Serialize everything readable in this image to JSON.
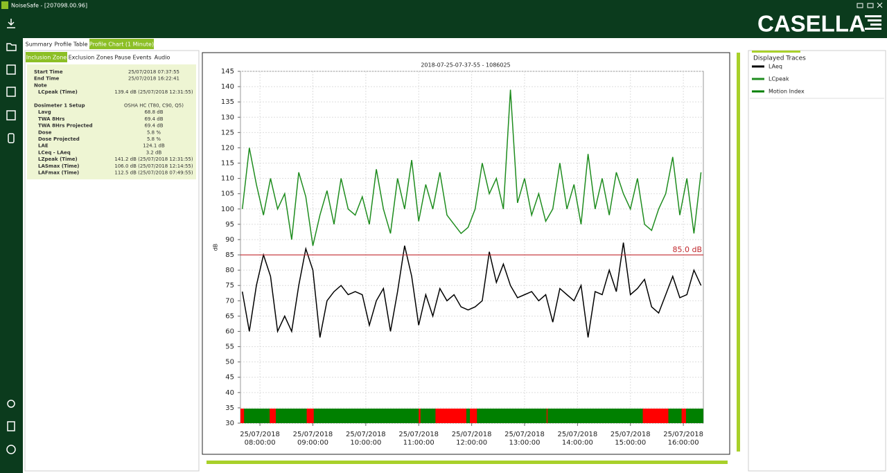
{
  "window": {
    "title": "NoiseSafe - [207098.00.96]",
    "logo": "CASELLA"
  },
  "tabs": [
    "Summary",
    "Profile Table",
    "Profile Chart (1 Minute)"
  ],
  "subtabs": [
    "Inclusion Zone",
    "Exclusion Zones",
    "Pause Events",
    "Audio"
  ],
  "summary": {
    "blocks": [
      {
        "items": [
          {
            "label": "Start Time",
            "value": "25/07/2018 07:37:55"
          },
          {
            "label": "End Time",
            "value": "25/07/2018 16:22:41"
          },
          {
            "label": "Note",
            "children": [
              {
                "label": "LCpeak (Time)",
                "value": "139.4 dB (25/07/2018 12:31:55)"
              }
            ]
          }
        ]
      },
      {
        "items": [
          {
            "label": "Dosimeter 1 Setup",
            "value": "OSHA HC (T80, C90, Q5)",
            "children": [
              {
                "label": "Lavg",
                "value": "68.8 dB"
              },
              {
                "label": "TWA 8Hrs",
                "value": "69.4 dB"
              },
              {
                "label": "TWA 8Hrs Projected",
                "value": "69.4 dB"
              },
              {
                "label": "Dose",
                "value": "5.8 %"
              },
              {
                "label": "Dose Projected",
                "value": "5.8 %"
              },
              {
                "label": "LAE",
                "value": "124.1 dB"
              },
              {
                "label": "LCeq - LAeq",
                "value": "3.2 dB"
              },
              {
                "label": "LZpeak (Time)",
                "value": "141.2 dB (25/07/2018 12:31:55)"
              },
              {
                "label": "LASmax (Time)",
                "value": "106.0 dB (25/07/2018 12:14:55)"
              },
              {
                "label": "LAFmax (Time)",
                "value": "112.5 dB (25/07/2018 07:49:55)"
              }
            ]
          }
        ]
      }
    ]
  },
  "traces_panel": {
    "title": "Displayed Traces"
  },
  "chart_data": {
    "type": "line",
    "title": "2018-07-25-07-37-55 - 1086025",
    "y_label": "dB",
    "x": [
      "07:40:00",
      "07:48:00",
      "07:56:00",
      "08:04:00",
      "08:12:00",
      "08:20:00",
      "08:28:00",
      "08:36:00",
      "08:44:00",
      "08:52:00",
      "09:00:00",
      "09:08:00",
      "09:16:00",
      "09:24:00",
      "09:32:00",
      "09:40:00",
      "09:48:00",
      "09:56:00",
      "10:04:00",
      "10:12:00",
      "10:20:00",
      "10:28:00",
      "10:36:00",
      "10:44:00",
      "10:52:00",
      "11:00:00",
      "11:08:00",
      "11:16:00",
      "11:24:00",
      "11:32:00",
      "11:40:00",
      "11:48:00",
      "11:56:00",
      "12:04:00",
      "12:12:00",
      "12:20:00",
      "12:28:00",
      "12:36:00",
      "12:44:00",
      "12:52:00",
      "13:00:00",
      "13:08:00",
      "13:16:00",
      "13:24:00",
      "13:32:00",
      "13:40:00",
      "13:48:00",
      "13:56:00",
      "14:04:00",
      "14:12:00",
      "14:20:00",
      "14:28:00",
      "14:36:00",
      "14:44:00",
      "14:52:00",
      "15:00:00",
      "15:08:00",
      "15:16:00",
      "15:24:00",
      "15:32:00",
      "15:40:00",
      "15:48:00",
      "15:56:00",
      "16:04:00",
      "16:12:00",
      "16:20:00"
    ],
    "series": [
      {
        "name": "LAeq",
        "color": "#000000",
        "values": [
          73,
          60,
          75,
          85,
          78,
          60,
          65,
          60,
          75,
          87,
          80,
          58,
          70,
          73,
          75,
          72,
          73,
          72,
          62,
          70,
          74,
          60,
          73,
          88,
          78,
          62,
          72,
          65,
          74,
          70,
          72,
          68,
          67,
          68,
          70,
          86,
          76,
          82,
          75,
          71,
          72,
          73,
          70,
          72,
          63,
          74,
          72,
          70,
          75,
          58,
          73,
          72,
          80,
          73,
          89,
          72,
          74,
          77,
          68,
          66,
          72,
          78,
          71,
          72,
          80,
          75
        ]
      },
      {
        "name": "LCpeak",
        "color": "#1e8c1e",
        "values": [
          100,
          120,
          108,
          98,
          110,
          100,
          105,
          90,
          112,
          104,
          88,
          98,
          106,
          95,
          110,
          100,
          98,
          104,
          95,
          113,
          100,
          92,
          110,
          100,
          116,
          96,
          108,
          100,
          112,
          98,
          95,
          92,
          94,
          100,
          115,
          105,
          110,
          100,
          139,
          102,
          110,
          98,
          105,
          96,
          100,
          115,
          100,
          108,
          95,
          118,
          100,
          110,
          98,
          112,
          105,
          100,
          110,
          95,
          93,
          100,
          105,
          117,
          98,
          110,
          92,
          112
        ]
      }
    ],
    "motion": {
      "name": "Motion Index",
      "color": "#008000",
      "alert_color": "#ff0000",
      "alerts": [
        [
          "07:37:55",
          "07:42:00"
        ],
        [
          "08:11:00",
          "08:18:00"
        ],
        [
          "08:53:00",
          "09:01:00"
        ],
        [
          "11:00:00",
          "11:02:00"
        ],
        [
          "11:19:00",
          "11:54:00"
        ],
        [
          "11:58:00",
          "12:06:00"
        ],
        [
          "13:25:00",
          "13:26:00"
        ],
        [
          "15:14:00",
          "15:43:00"
        ],
        [
          "15:58:00",
          "16:03:00"
        ]
      ]
    },
    "threshold": {
      "value": 85,
      "label": "85.0 dB",
      "color": "#c0282d"
    },
    "xlim": [
      "07:37:55",
      "16:22:41"
    ],
    "xticks": [
      {
        "value": "08:00:00",
        "label": "25/07/2018\n08:00:00"
      },
      {
        "value": "09:00:00",
        "label": "25/07/2018\n09:00:00"
      },
      {
        "value": "10:00:00",
        "label": "25/07/2018\n10:00:00"
      },
      {
        "value": "11:00:00",
        "label": "25/07/2018\n11:00:00"
      },
      {
        "value": "12:00:00",
        "label": "25/07/2018\n12:00:00"
      },
      {
        "value": "13:00:00",
        "label": "25/07/2018\n13:00:00"
      },
      {
        "value": "14:00:00",
        "label": "25/07/2018\n14:00:00"
      },
      {
        "value": "15:00:00",
        "label": "25/07/2018\n15:00:00"
      },
      {
        "value": "16:00:00",
        "label": "25/07/2018\n16:00:00"
      }
    ],
    "ylim": [
      30,
      145
    ],
    "yticks": [
      30,
      35,
      40,
      45,
      50,
      55,
      60,
      65,
      70,
      75,
      80,
      85,
      90,
      95,
      100,
      105,
      110,
      115,
      120,
      125,
      130,
      135,
      140,
      145
    ],
    "grid": true
  }
}
